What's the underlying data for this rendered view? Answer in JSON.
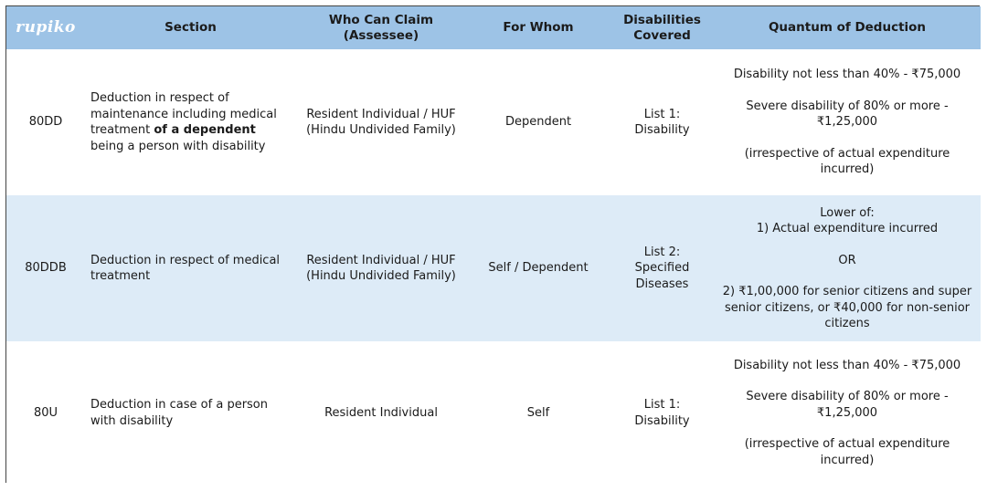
{
  "logo": "rupiko",
  "headers": {
    "section": "Section",
    "who": "Who Can Claim (Assessee)",
    "whom": "For Whom",
    "disabilities": "Disabilities Covered",
    "quantum": "Quantum of Deduction"
  },
  "rows": [
    {
      "section": "80DD",
      "desc_pre": "Deduction in respect of maintenance including medical treatment ",
      "desc_bold": "of a dependent",
      "desc_post": " being a person with disability",
      "who": "Resident Individual / HUF (Hindu Undivided Family)",
      "whom": "Dependent",
      "disabilities": "List 1: Disability",
      "quantum": [
        "Disability not less than 40% - ₹75,000",
        "Severe disability of 80% or more - ₹1,25,000",
        "(irrespective of actual expenditure incurred)"
      ]
    },
    {
      "section": "80DDB",
      "desc": "Deduction in respect of medical treatment",
      "who": "Resident Individual / HUF (Hindu Undivided Family)",
      "whom": "Self / Dependent",
      "disabilities": "List 2: Specified Diseases",
      "quantum_intro": [
        "Lower of:",
        "1) Actual expenditure incurred"
      ],
      "quantum_or": "OR",
      "quantum_last": "2) ₹1,00,000 for senior citizens and super senior citizens, or ₹40,000 for non-senior citizens"
    },
    {
      "section": "80U",
      "desc": "Deduction in case of a person with disability",
      "who": "Resident Individual",
      "whom": "Self",
      "disabilities": "List 1: Disability",
      "quantum": [
        "Disability not less than 40% - ₹75,000",
        "Severe disability of 80% or more - ₹1,25,000",
        "(irrespective of actual expenditure incurred)"
      ]
    }
  ]
}
